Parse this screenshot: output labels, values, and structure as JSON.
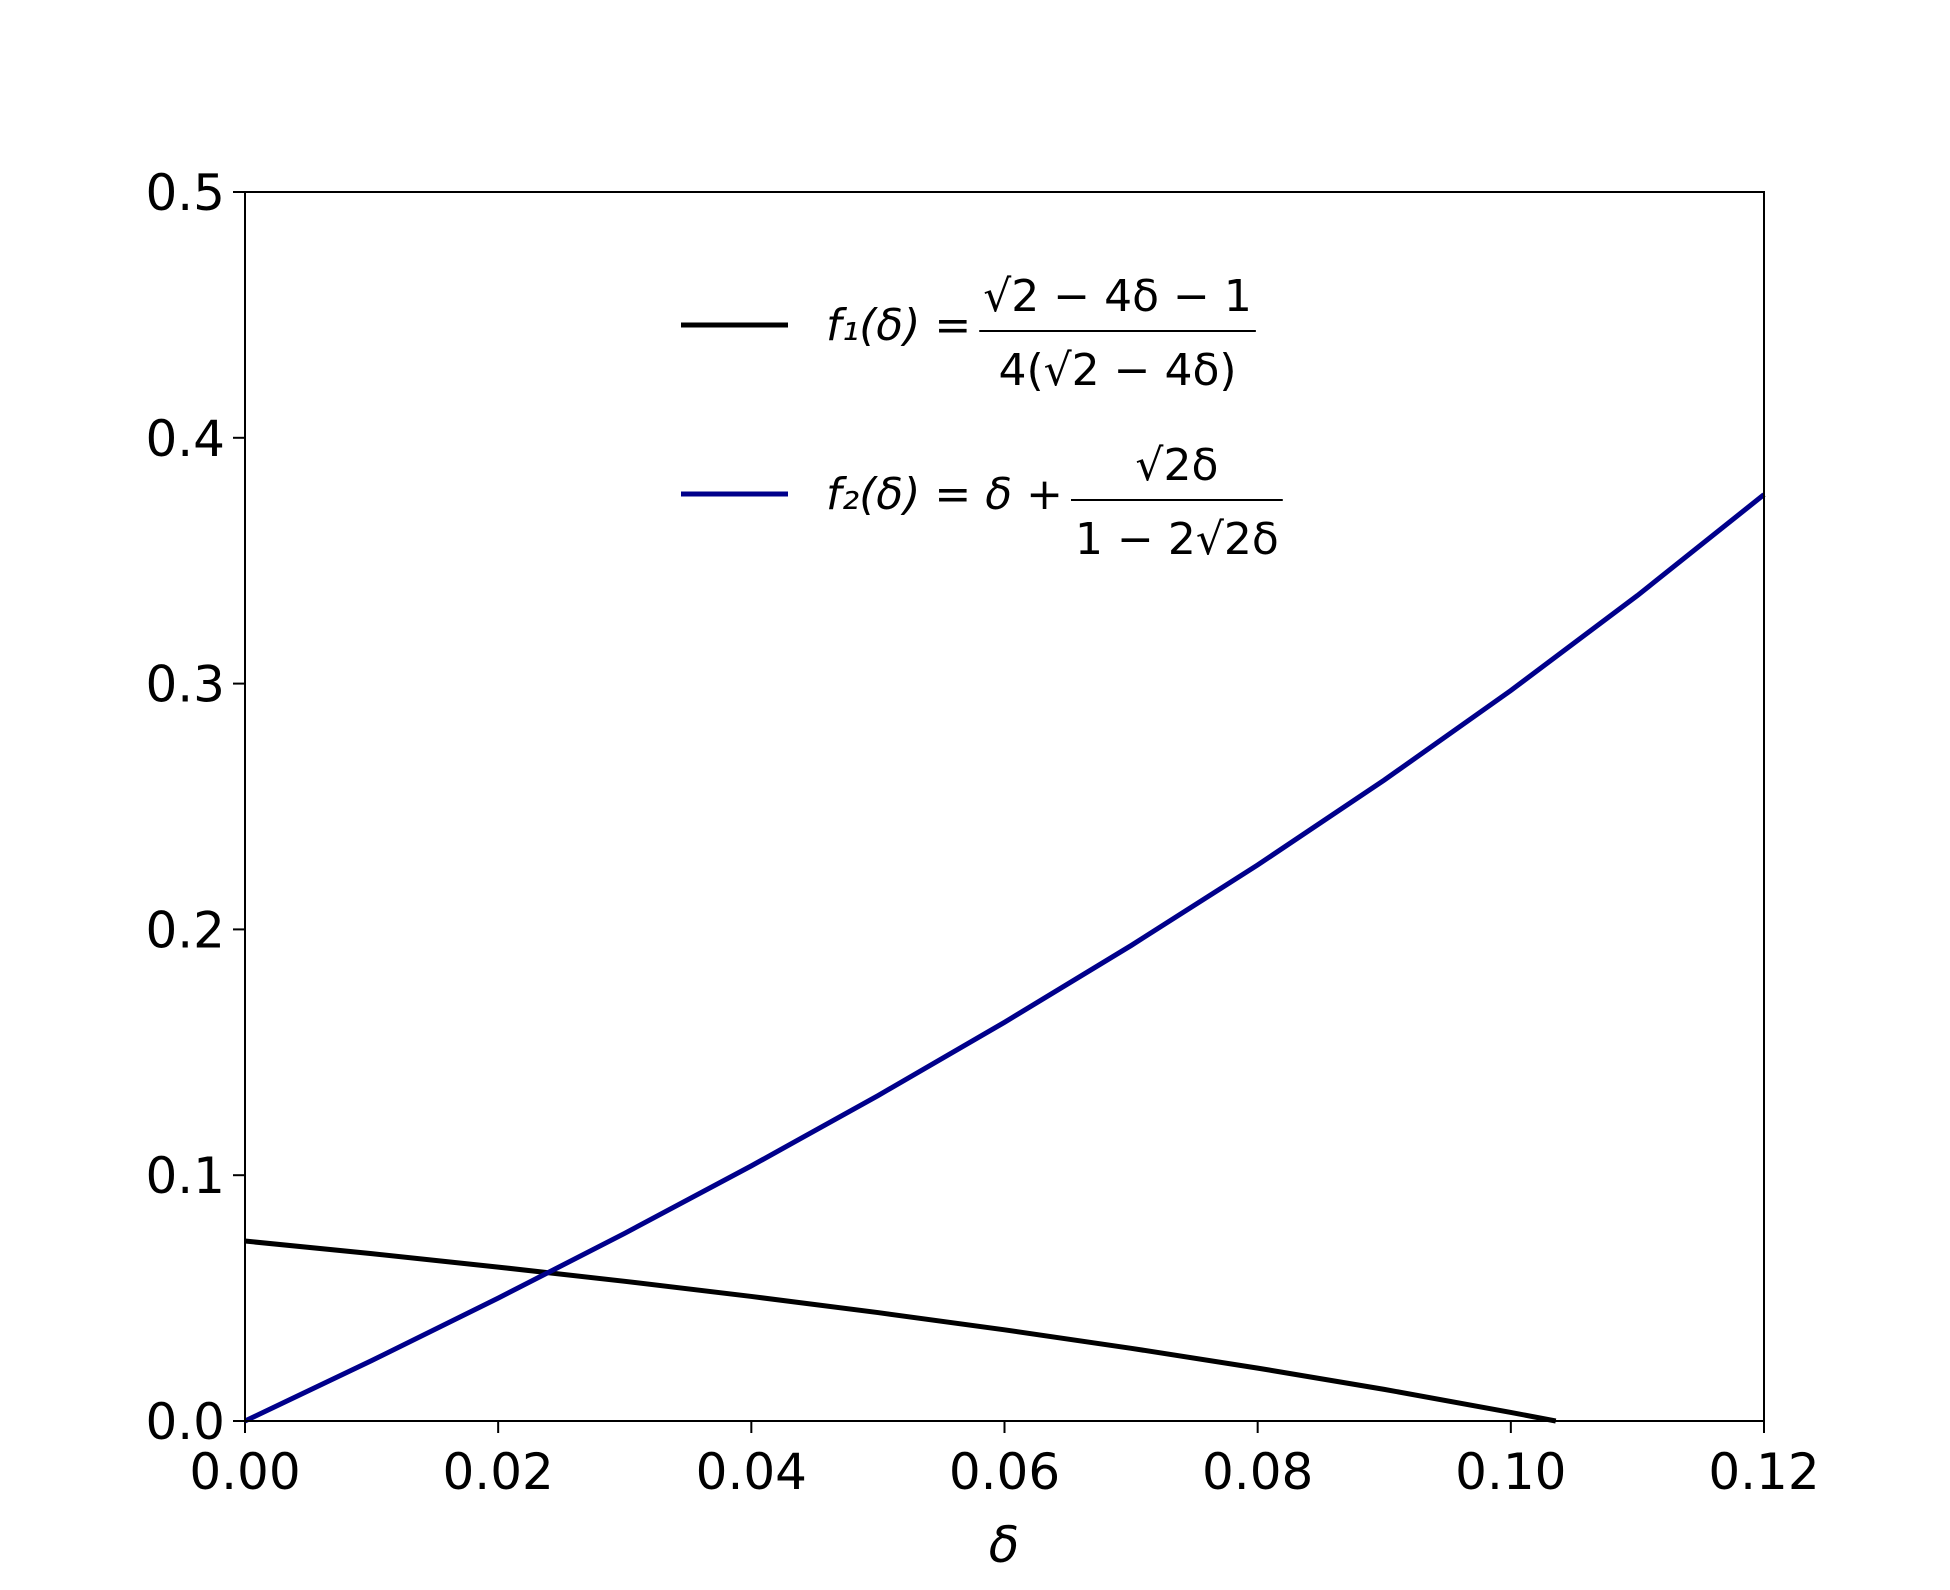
{
  "chart_data": {
    "type": "line",
    "xlabel": "δ",
    "xlim": [
      0,
      0.12
    ],
    "ylim": [
      0,
      0.5
    ],
    "xticks": [
      {
        "value": 0,
        "label": "0.00"
      },
      0.02,
      0.04,
      0.06,
      0.08,
      {
        "value": 0.1,
        "label": "0.10"
      },
      0.12
    ],
    "yticks": [
      {
        "value": 0,
        "label": "0.0"
      },
      0.1,
      0.2,
      0.3,
      0.4,
      0.5
    ],
    "legend": "upper center",
    "series": [
      {
        "name": "f₁(δ) =",
        "fraction": {
          "numerator": "√2 − 4δ − 1",
          "denominator": "4(√2 − 4δ)"
        },
        "color": "#000000",
        "x": [
          0,
          0.01,
          0.02,
          0.03,
          0.04,
          0.05,
          0.06,
          0.07,
          0.08,
          0.09,
          0.1,
          0.10355
        ],
        "values": [
          0.07322,
          0.06808,
          0.06262,
          0.05683,
          0.05067,
          0.04411,
          0.03709,
          0.02958,
          0.02152,
          0.01286,
          0.0035,
          0
        ]
      },
      {
        "name": "f₂(δ) = δ +",
        "fraction": {
          "numerator": "√2δ",
          "denominator": "1 − 2√2δ"
        },
        "color": "#00008b",
        "x": [
          0,
          0.01,
          0.02,
          0.03,
          0.04,
          0.05,
          0.06,
          0.07,
          0.08,
          0.09,
          0.1,
          0.11,
          0.12
        ],
        "values": [
          0,
          0.02455,
          0.04998,
          0.07636,
          0.10379,
          0.13236,
          0.1622,
          0.19343,
          0.22622,
          0.26074,
          0.2972,
          0.33583,
          0.3769
        ]
      }
    ]
  }
}
